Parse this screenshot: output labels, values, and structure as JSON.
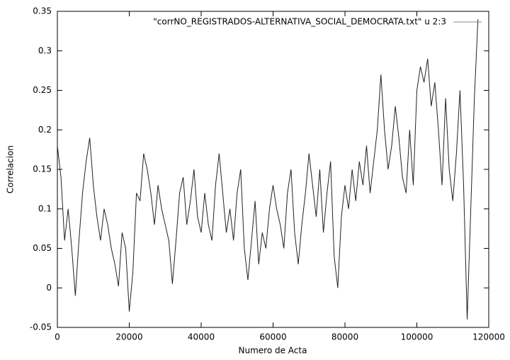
{
  "chart_data": {
    "type": "line",
    "xlabel": "Numero de Acta",
    "ylabel": "Correlacion",
    "xlim": [
      0,
      120000
    ],
    "ylim": [
      -0.05,
      0.35
    ],
    "xticks": [
      0,
      20000,
      40000,
      60000,
      80000,
      100000,
      120000
    ],
    "yticks": [
      -0.05,
      0,
      0.05,
      0.1,
      0.15,
      0.2,
      0.25,
      0.3,
      0.35
    ],
    "legend": "top-right",
    "x": [
      0,
      1000,
      2000,
      3000,
      4000,
      5000,
      6000,
      7000,
      8000,
      9000,
      10000,
      11000,
      12000,
      13000,
      14000,
      15000,
      16000,
      17000,
      18000,
      19000,
      20000,
      21000,
      22000,
      23000,
      24000,
      25000,
      26000,
      27000,
      28000,
      29000,
      30000,
      31000,
      32000,
      33000,
      34000,
      35000,
      36000,
      37000,
      38000,
      39000,
      40000,
      41000,
      42000,
      43000,
      44000,
      45000,
      46000,
      47000,
      48000,
      49000,
      50000,
      51000,
      52000,
      53000,
      54000,
      55000,
      56000,
      57000,
      58000,
      59000,
      60000,
      61000,
      62000,
      63000,
      64000,
      65000,
      66000,
      67000,
      68000,
      69000,
      70000,
      71000,
      72000,
      73000,
      74000,
      75000,
      76000,
      77000,
      78000,
      79000,
      80000,
      81000,
      82000,
      83000,
      84000,
      85000,
      86000,
      87000,
      88000,
      89000,
      90000,
      91000,
      92000,
      93000,
      94000,
      95000,
      96000,
      97000,
      98000,
      99000,
      100000,
      101000,
      102000,
      103000,
      104000,
      105000,
      106000,
      107000,
      108000,
      109000,
      110000,
      111000,
      112000,
      113000,
      114000,
      115000,
      116000,
      117000
    ],
    "series": [
      {
        "name": "\"corrNO_REGISTRADOS-ALTERNATIVA_SOCIAL_DEMOCRATA.txt\" u 2:3",
        "color": "#222222",
        "values": [
          0.18,
          0.14,
          0.06,
          0.1,
          0.05,
          -0.01,
          0.06,
          0.12,
          0.16,
          0.19,
          0.13,
          0.09,
          0.06,
          0.1,
          0.08,
          0.05,
          0.03,
          0.002,
          0.07,
          0.05,
          -0.03,
          0.02,
          0.12,
          0.11,
          0.17,
          0.15,
          0.12,
          0.08,
          0.13,
          0.1,
          0.08,
          0.06,
          0.005,
          0.06,
          0.12,
          0.14,
          0.08,
          0.11,
          0.15,
          0.09,
          0.07,
          0.12,
          0.08,
          0.06,
          0.13,
          0.17,
          0.12,
          0.07,
          0.1,
          0.06,
          0.12,
          0.15,
          0.05,
          0.01,
          0.06,
          0.11,
          0.03,
          0.07,
          0.05,
          0.1,
          0.13,
          0.1,
          0.08,
          0.05,
          0.12,
          0.15,
          0.07,
          0.03,
          0.08,
          0.12,
          0.17,
          0.13,
          0.09,
          0.15,
          0.07,
          0.12,
          0.16,
          0.04,
          0.0,
          0.09,
          0.13,
          0.1,
          0.15,
          0.11,
          0.16,
          0.13,
          0.18,
          0.12,
          0.16,
          0.2,
          0.27,
          0.2,
          0.15,
          0.18,
          0.23,
          0.19,
          0.14,
          0.12,
          0.2,
          0.13,
          0.25,
          0.28,
          0.26,
          0.29,
          0.23,
          0.26,
          0.2,
          0.13,
          0.24,
          0.15,
          0.11,
          0.17,
          0.25,
          0.13,
          -0.04,
          0.1,
          0.24,
          0.34
        ]
      }
    ]
  }
}
